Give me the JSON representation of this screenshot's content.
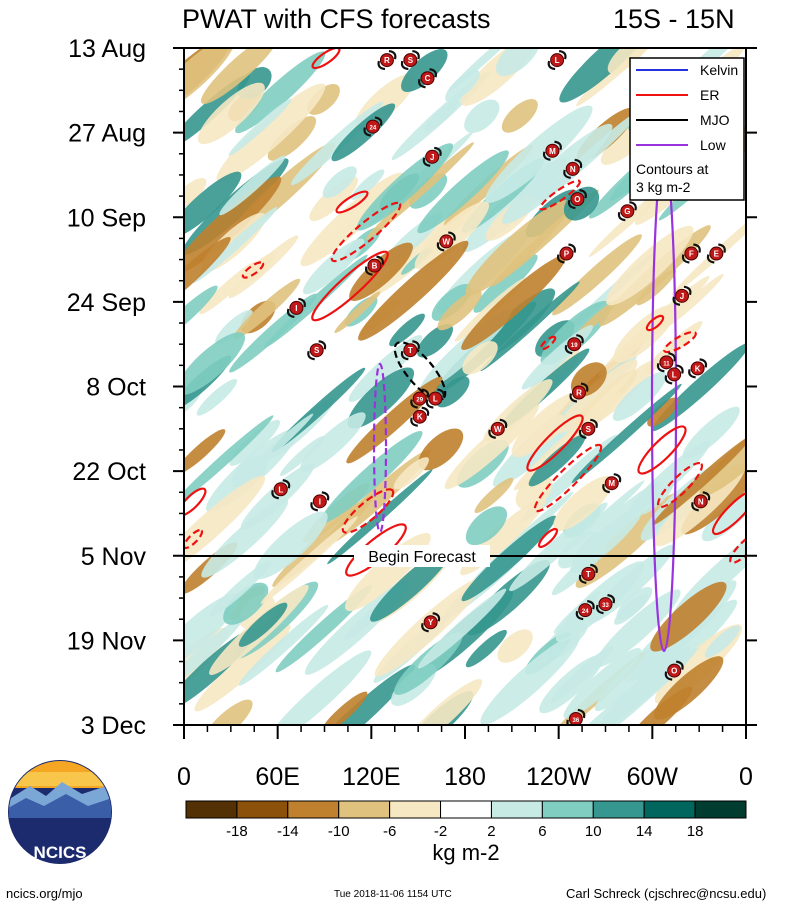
{
  "header": {
    "title": "PWAT with CFS forecasts",
    "region": "15S - 15N"
  },
  "chart_data": {
    "type": "heatmap",
    "title": "PWAT with CFS forecasts",
    "subtitle": "15S - 15N",
    "y_ticks": [
      "13 Aug",
      "27 Aug",
      "10 Sep",
      "24 Sep",
      "8 Oct",
      "22 Oct",
      "5 Nov",
      "19 Nov",
      "3 Dec"
    ],
    "x_ticks": [
      "0",
      "60E",
      "120E",
      "180",
      "120W",
      "60W",
      "0"
    ],
    "x_range_lon": [
      0,
      360
    ],
    "y_range": [
      "13 Aug",
      "3 Dec"
    ],
    "forecast_start": "5 Nov",
    "forecast_label": "Begin Forecast",
    "legend": {
      "position": "top-right",
      "items": [
        {
          "label": "Kelvin",
          "color": "#2233dd"
        },
        {
          "label": "ER",
          "color": "#ee1111"
        },
        {
          "label": "MJO",
          "color": "#000000"
        },
        {
          "label": "Low",
          "color": "#9933dd"
        }
      ],
      "note": "Contours at\n3 kg m-2"
    },
    "colorbar": {
      "unit": "kg m-2",
      "labels": [
        "-18",
        "-14",
        "-10",
        "-6",
        "-2",
        "2",
        "6",
        "10",
        "14",
        "18"
      ],
      "colors": [
        "#543005",
        "#8c510a",
        "#bf812d",
        "#dfc27d",
        "#f6e8c3",
        "#ffffff",
        "#c7eae5",
        "#80cdc1",
        "#35978f",
        "#01665e",
        "#003c30"
      ]
    },
    "storms": [
      {
        "label": "R",
        "lon": 130,
        "day": 2
      },
      {
        "label": "S",
        "lon": 145,
        "day": 2
      },
      {
        "label": "C",
        "lon": 156,
        "day": 5
      },
      {
        "label": "L",
        "lon": 239,
        "day": 2
      },
      {
        "label": "24",
        "lon": 121,
        "day": 13
      },
      {
        "label": "J",
        "lon": 159,
        "day": 18
      },
      {
        "label": "M",
        "lon": 236,
        "day": 17
      },
      {
        "label": "N",
        "lon": 249,
        "day": 20
      },
      {
        "label": "O",
        "lon": 252,
        "day": 25
      },
      {
        "label": "G",
        "lon": 284,
        "day": 27
      },
      {
        "label": "B",
        "lon": 122,
        "day": 36
      },
      {
        "label": "W",
        "lon": 168,
        "day": 32
      },
      {
        "label": "P",
        "lon": 245,
        "day": 34
      },
      {
        "label": "I",
        "lon": 72,
        "day": 43
      },
      {
        "label": "S",
        "lon": 85,
        "day": 50
      },
      {
        "label": "T",
        "lon": 145,
        "day": 50
      },
      {
        "label": "19",
        "lon": 250,
        "day": 49
      },
      {
        "label": "11",
        "lon": 309,
        "day": 52
      },
      {
        "label": "L",
        "lon": 314,
        "day": 54
      },
      {
        "label": "K",
        "lon": 329,
        "day": 53
      },
      {
        "label": "J",
        "lon": 319,
        "day": 41
      },
      {
        "label": "F",
        "lon": 325,
        "day": 34
      },
      {
        "label": "E",
        "lon": 341,
        "day": 34
      },
      {
        "label": "29",
        "lon": 151,
        "day": 58
      },
      {
        "label": "L",
        "lon": 161,
        "day": 58
      },
      {
        "label": "K",
        "lon": 151,
        "day": 61
      },
      {
        "label": "W",
        "lon": 201,
        "day": 63
      },
      {
        "label": "R",
        "lon": 253,
        "day": 57
      },
      {
        "label": "S",
        "lon": 259,
        "day": 63
      },
      {
        "label": "L",
        "lon": 62,
        "day": 73
      },
      {
        "label": "I",
        "lon": 87,
        "day": 75
      },
      {
        "label": "M",
        "lon": 274,
        "day": 72
      },
      {
        "label": "N",
        "lon": 331,
        "day": 75
      },
      {
        "label": "T",
        "lon": 259,
        "day": 87
      },
      {
        "label": "24",
        "lon": 257,
        "day": 93
      },
      {
        "label": "33",
        "lon": 270,
        "day": 92
      },
      {
        "label": "Y",
        "lon": 158,
        "day": 95
      },
      {
        "label": "O",
        "lon": 314,
        "day": 103
      },
      {
        "label": "36",
        "lon": 251,
        "day": 111
      }
    ]
  },
  "footer": {
    "logo_text": "NCICS",
    "url": "ncics.org/mjo",
    "timestamp": "Tue 2018-11-06 1154 UTC",
    "author": "Carl Schreck (cjschrec@ncsu.edu)"
  }
}
